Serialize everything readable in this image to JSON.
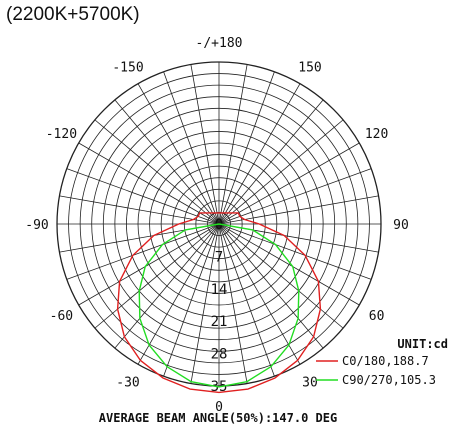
{
  "title": "(2200K+5700K)",
  "chart_data": {
    "type": "polar",
    "angle_labels": [
      {
        "text": "-/+180",
        "angle": 180
      },
      {
        "text": "150",
        "angle": 150
      },
      {
        "text": "-150",
        "angle": -150
      },
      {
        "text": "120",
        "angle": 120
      },
      {
        "text": "-120",
        "angle": -120
      },
      {
        "text": "90",
        "angle": 90
      },
      {
        "text": "-90",
        "angle": -90
      },
      {
        "text": "60",
        "angle": 60
      },
      {
        "text": "-60",
        "angle": -60
      },
      {
        "text": "30",
        "angle": 30
      },
      {
        "text": "-30",
        "angle": -30
      },
      {
        "text": "0",
        "angle": 0
      }
    ],
    "radial_ticks": [
      0,
      7,
      14,
      21,
      28,
      35
    ],
    "rmax": 35,
    "unit": "UNIT:cd",
    "beam_text": "AVERAGE BEAM ANGLE(50%):147.0 DEG",
    "series": [
      {
        "name": "C0/180,188.7",
        "color": "#e02020",
        "angles": [
          0,
          10,
          20,
          30,
          40,
          50,
          60,
          70,
          80,
          90,
          100,
          110,
          120
        ],
        "values": [
          36.4,
          36.2,
          35.4,
          34.0,
          31.8,
          28.6,
          24.8,
          19.8,
          14.3,
          8.7,
          5.6,
          4.8,
          4.8
        ]
      },
      {
        "name": "C90/270,105.3",
        "color": "#22dd22",
        "angles": [
          0,
          10,
          20,
          30,
          40,
          50,
          60,
          70,
          80,
          90
        ],
        "values": [
          35.2,
          34.6,
          32.8,
          30.2,
          26.6,
          22.5,
          18.4,
          13.0,
          7.4,
          0.0
        ]
      }
    ]
  }
}
